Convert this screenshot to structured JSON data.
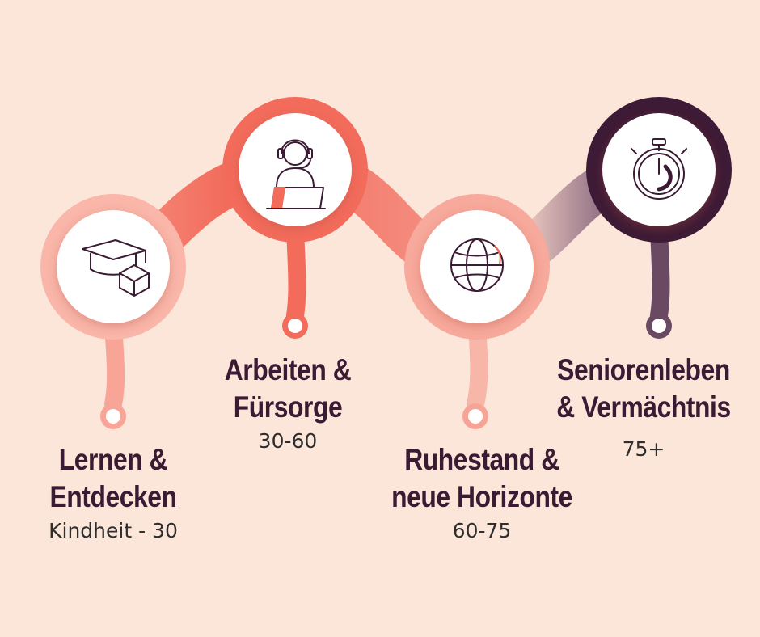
{
  "stages": [
    {
      "title_line1": "Lernen &",
      "title_line2": "Entdecken",
      "range": "Kindheit - 30",
      "icon": "graduation-cap-icon"
    },
    {
      "title_line1": "Arbeiten &",
      "title_line2": "Fürsorge",
      "range": "30-60",
      "icon": "headset-worker-icon"
    },
    {
      "title_line1": "Ruhestand &",
      "title_line2": "neue Horizonte",
      "range": "60-75",
      "icon": "globe-icon"
    },
    {
      "title_line1": "Seniorenleben",
      "title_line2": "& Vermächtnis",
      "range": "75+",
      "icon": "stopwatch-icon"
    }
  ],
  "colors": {
    "background": "#fce6da",
    "coral": "#f26b5b",
    "coral_light": "#f8a597",
    "plum": "#3d1a35",
    "text": "#3b1a33"
  }
}
